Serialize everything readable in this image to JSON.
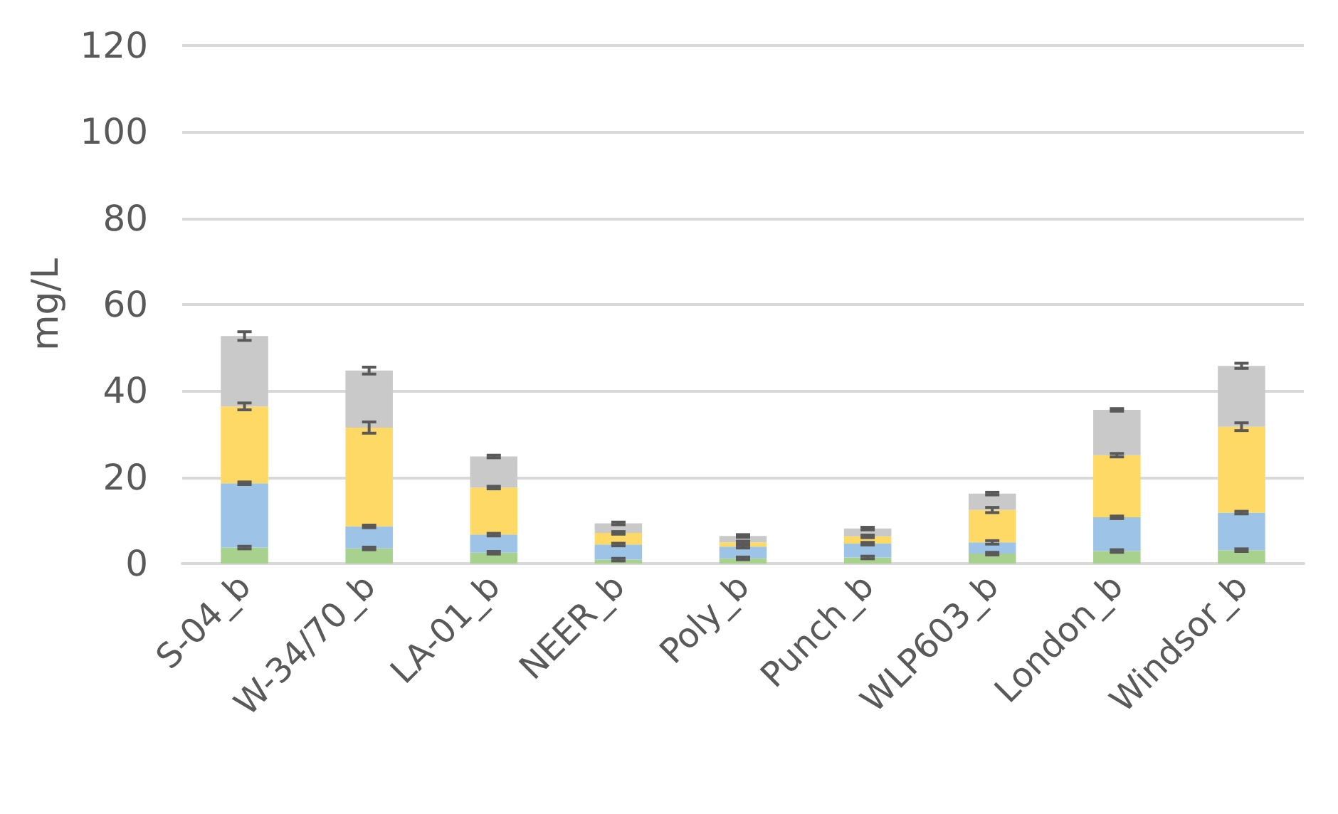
{
  "chart_data": {
    "type": "bar",
    "stacked": true,
    "ylabel": "mg/L",
    "categories": [
      "S-04_b",
      "W-34/70_b",
      "LA-01_b",
      "NEER_b",
      "Poly_b",
      "Punch_b",
      "WLP603_b",
      "London_b",
      "Windsor_b"
    ],
    "series": [
      {
        "color": "#a9d18e",
        "values": [
          3.7,
          3.5,
          2.5,
          0.9,
          1.2,
          1.4,
          2.3,
          2.9,
          3.1
        ],
        "errors": [
          0.3,
          0.3,
          0.3,
          0.3,
          0.3,
          0.3,
          0.3,
          0.3,
          0.3
        ]
      },
      {
        "color": "#9dc3e6",
        "values": [
          14.9,
          5.1,
          4.2,
          3.5,
          2.7,
          3.2,
          2.6,
          7.8,
          8.7
        ],
        "errors": [
          0.3,
          0.3,
          0.3,
          0.3,
          0.3,
          0.3,
          0.4,
          0.3,
          0.3
        ]
      },
      {
        "color": "#ffd966",
        "values": [
          17.8,
          22.9,
          10.9,
          2.7,
          1.0,
          1.7,
          7.5,
          14.4,
          19.9
        ],
        "errors": [
          0.8,
          1.3,
          0.3,
          0.3,
          0.3,
          0.3,
          0.6,
          0.4,
          0.9
        ]
      },
      {
        "color": "#c9c9c9",
        "values": [
          16.3,
          13.2,
          7.2,
          2.2,
          1.5,
          1.8,
          3.8,
          10.5,
          14.1
        ],
        "errors": [
          1.0,
          0.8,
          0.3,
          0.3,
          0.3,
          0.3,
          0.3,
          0.3,
          0.6
        ]
      }
    ],
    "ylim": [
      0,
      120
    ],
    "yticks": [
      0,
      20,
      40,
      60,
      80,
      100,
      120
    ],
    "grid": "y"
  }
}
